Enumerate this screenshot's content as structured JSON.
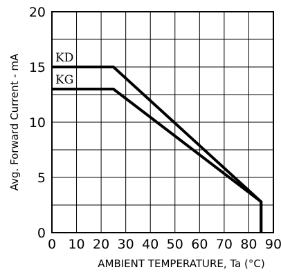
{
  "chart_data": {
    "type": "line",
    "xlabel": "AMBIENT TEMPERATURE, Ta (°C)",
    "ylabel": "Avg. Forward Current - mA",
    "xlim": [
      0,
      90
    ],
    "ylim": [
      0,
      20
    ],
    "x_ticks": [
      "0",
      "10",
      "20",
      "30",
      "40",
      "50",
      "60",
      "70",
      "80",
      "90"
    ],
    "y_ticks": [
      "0",
      "5",
      "10",
      "15",
      "20"
    ],
    "grid": true,
    "series": [
      {
        "name": "KD",
        "x": [
          0,
          25,
          85,
          85
        ],
        "y": [
          15,
          15,
          2.8,
          0
        ]
      },
      {
        "name": "KG",
        "x": [
          0,
          25,
          85,
          85
        ],
        "y": [
          13,
          13,
          2.8,
          0
        ]
      }
    ]
  }
}
